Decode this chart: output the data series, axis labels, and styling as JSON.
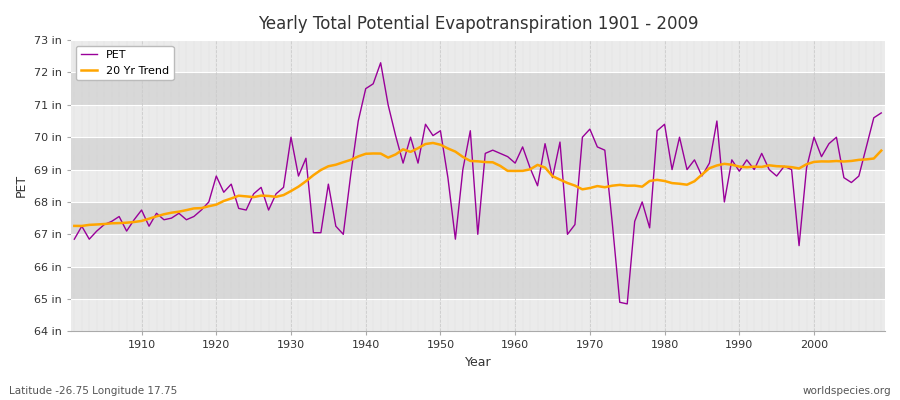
{
  "title": "Yearly Total Potential Evapotranspiration 1901 - 2009",
  "xlabel": "Year",
  "ylabel": "PET",
  "background_color": "#ffffff",
  "plot_bg_color": "#e8e8e8",
  "years": [
    1901,
    1902,
    1903,
    1904,
    1905,
    1906,
    1907,
    1908,
    1909,
    1910,
    1911,
    1912,
    1913,
    1914,
    1915,
    1916,
    1917,
    1918,
    1919,
    1920,
    1921,
    1922,
    1923,
    1924,
    1925,
    1926,
    1927,
    1928,
    1929,
    1930,
    1931,
    1932,
    1933,
    1934,
    1935,
    1936,
    1937,
    1938,
    1939,
    1940,
    1941,
    1942,
    1943,
    1944,
    1945,
    1946,
    1947,
    1948,
    1949,
    1950,
    1951,
    1952,
    1953,
    1954,
    1955,
    1956,
    1957,
    1958,
    1959,
    1960,
    1961,
    1962,
    1963,
    1964,
    1965,
    1966,
    1967,
    1968,
    1969,
    1970,
    1971,
    1972,
    1973,
    1974,
    1975,
    1976,
    1977,
    1978,
    1979,
    1980,
    1981,
    1982,
    1983,
    1984,
    1985,
    1986,
    1987,
    1988,
    1989,
    1990,
    1991,
    1992,
    1993,
    1994,
    1995,
    1996,
    1997,
    1998,
    1999,
    2000,
    2001,
    2002,
    2003,
    2004,
    2005,
    2006,
    2007,
    2008,
    2009
  ],
  "pet_values": [
    66.85,
    67.25,
    66.85,
    67.1,
    67.3,
    67.4,
    67.55,
    67.1,
    67.45,
    67.75,
    67.25,
    67.65,
    67.45,
    67.5,
    67.65,
    67.45,
    67.55,
    67.75,
    68.0,
    68.8,
    68.3,
    68.55,
    67.8,
    67.75,
    68.25,
    68.45,
    67.75,
    68.25,
    68.45,
    70.0,
    68.8,
    69.35,
    67.05,
    67.05,
    68.55,
    67.25,
    67.0,
    68.85,
    70.5,
    71.5,
    71.65,
    72.3,
    71.0,
    70.05,
    69.2,
    70.0,
    69.2,
    70.4,
    70.05,
    70.2,
    68.75,
    66.85,
    69.0,
    70.2,
    67.0,
    69.5,
    69.6,
    69.5,
    69.4,
    69.2,
    69.7,
    69.05,
    68.5,
    69.8,
    68.75,
    69.85,
    67.0,
    67.3,
    70.0,
    70.25,
    69.7,
    69.6,
    67.35,
    64.9,
    64.85,
    67.4,
    68.0,
    67.2,
    70.2,
    70.4,
    69.0,
    70.0,
    69.0,
    69.3,
    68.8,
    69.2,
    70.5,
    68.0,
    69.3,
    68.95,
    69.3,
    69.0,
    69.5,
    69.0,
    68.8,
    69.1,
    69.0,
    66.65,
    69.05,
    70.0,
    69.4,
    69.8,
    70.0,
    68.75,
    68.6,
    68.8,
    69.7,
    70.6,
    70.75
  ],
  "pet_color": "#990099",
  "trend_color": "#ffa500",
  "pet_linewidth": 1.0,
  "trend_linewidth": 1.8,
  "ylim": [
    64,
    73
  ],
  "yticks": [
    64,
    65,
    66,
    67,
    68,
    69,
    70,
    71,
    72,
    73
  ],
  "ytick_labels": [
    "64 in",
    "65 in",
    "66 in",
    "67 in",
    "68 in",
    "69 in",
    "70 in",
    "71 in",
    "72 in",
    "73 in"
  ],
  "xticks": [
    1910,
    1920,
    1930,
    1940,
    1950,
    1960,
    1970,
    1980,
    1990,
    2000
  ],
  "grid_color": "#ffffff",
  "minor_grid_color": "#d8d8d8",
  "bottom_left_text": "Latitude -26.75 Longitude 17.75",
  "bottom_right_text": "worldspecies.org",
  "legend_labels": [
    "PET",
    "20 Yr Trend"
  ],
  "band_color_light": "#ebebeb",
  "band_color_dark": "#d8d8d8"
}
